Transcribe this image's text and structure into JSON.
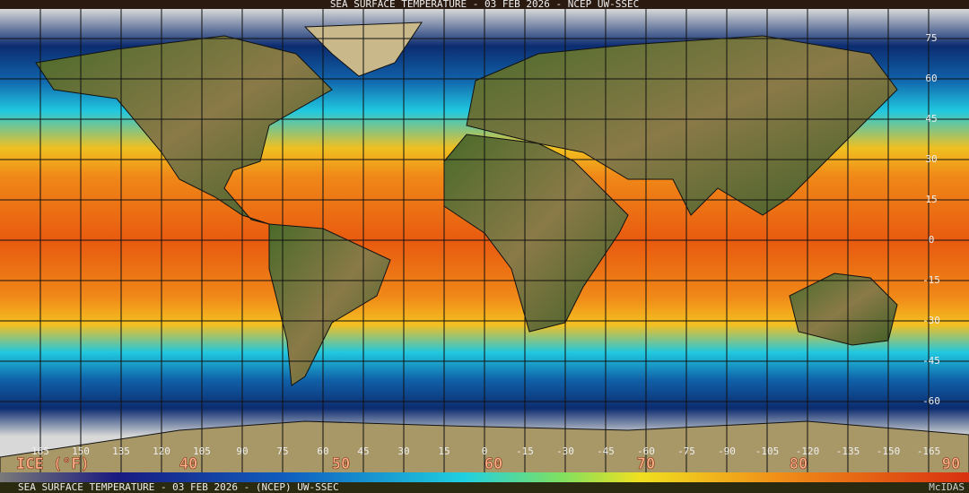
{
  "title": "SEA SURFACE TEMPERATURE - 03 FEB 2026 - NCEP UW-SSEC",
  "lat_labels": [
    75,
    60,
    45,
    30,
    15,
    0,
    -15,
    -30,
    -45,
    -60
  ],
  "lon_labels": [
    165,
    150,
    135,
    120,
    105,
    90,
    75,
    60,
    45,
    30,
    15,
    0,
    -15,
    -30,
    -45,
    -60,
    -75,
    -90,
    -105,
    -120,
    -135,
    -150,
    -165
  ],
  "legend": {
    "label": "ICE (°F)",
    "ticks": [
      40,
      50,
      60,
      70,
      80,
      90
    ]
  },
  "footer": "SEA SURFACE TEMPERATURE - 03 FEB 2026 - (NCEP)    UW-SSEC",
  "brand": "McIDAS"
}
